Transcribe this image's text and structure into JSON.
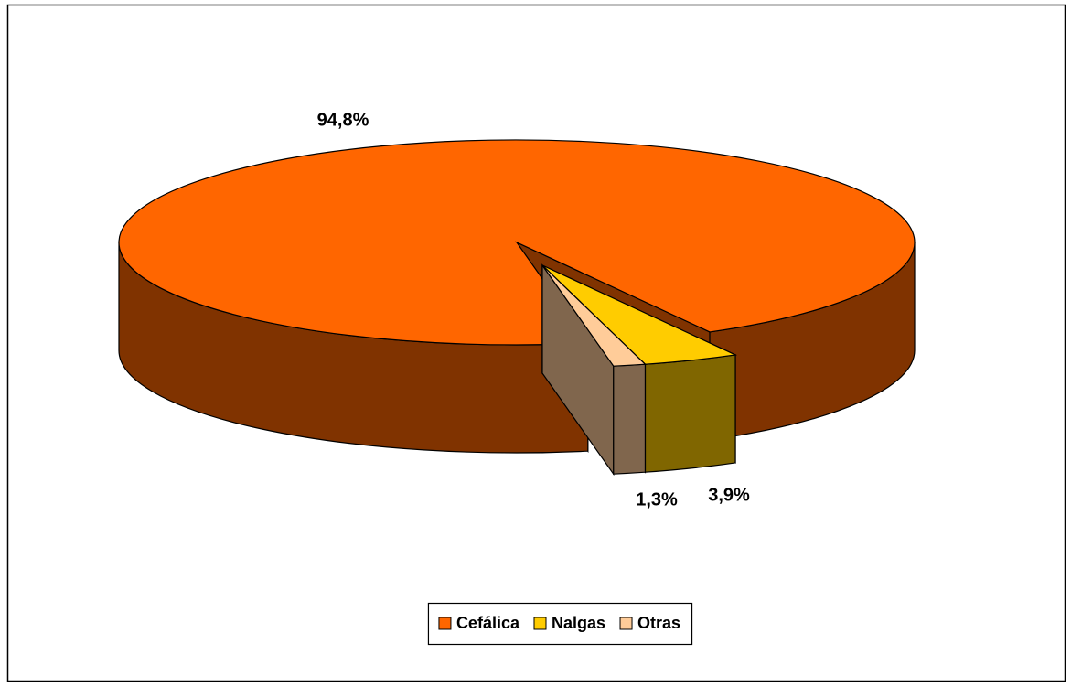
{
  "chart_data": {
    "type": "pie",
    "categories": [
      "Cefálica",
      "Nalgas",
      "Otras"
    ],
    "values": [
      94.8,
      3.9,
      1.3
    ],
    "value_labels": [
      "94,8%",
      "3,9%",
      "1,3%"
    ],
    "colors": [
      "#ff6600",
      "#ffcc00",
      "#ffcc99"
    ],
    "legend": "bottom"
  }
}
